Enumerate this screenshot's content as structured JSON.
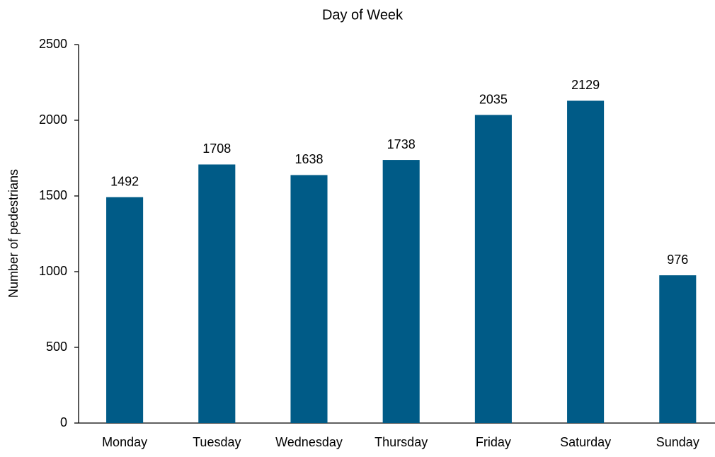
{
  "chart_data": {
    "type": "bar",
    "title": "Day of Week",
    "y_label": "Number of pedestrians",
    "categories": [
      "Monday",
      "Tuesday",
      "Wednesday",
      "Thursday",
      "Friday",
      "Saturday",
      "Sunday"
    ],
    "values": [
      1492,
      1708,
      1638,
      1738,
      2035,
      2129,
      976
    ],
    "color": "#005b87",
    "ylim": [
      0,
      2500
    ],
    "yticks": [
      0,
      500,
      1000,
      1500,
      2000,
      2500
    ],
    "grid": false,
    "data_labels": true
  }
}
